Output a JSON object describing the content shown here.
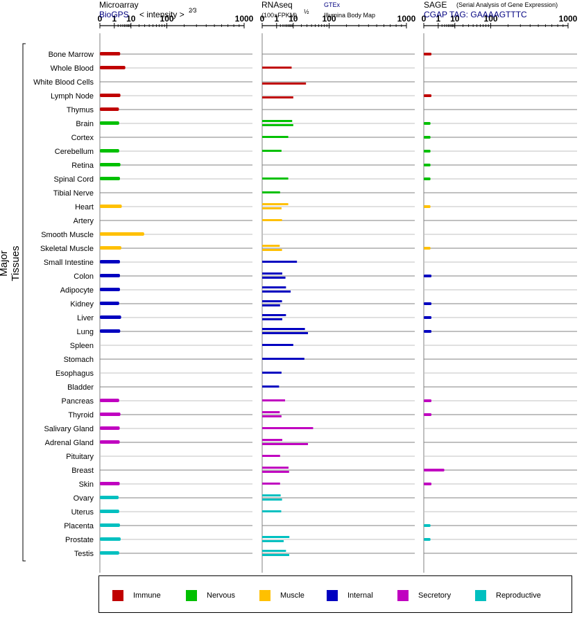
{
  "headers": {
    "microarray": {
      "title": "Microarray",
      "source": "BioGPS",
      "unit": "< intensity >",
      "exponent": "2⁄3"
    },
    "rnaseq": {
      "title": "RNAseq",
      "unit": "(100×FPKM)",
      "exponent": "½",
      "source1": "GTEx",
      "source2": "Illumina Body Map"
    },
    "sage": {
      "title": "SAGE",
      "subtitle": "(Serial Analysis of Gene Expression)",
      "tag": "CGAP TAG: GAAAAGTTTC"
    }
  },
  "chart_data": {
    "type": "bar",
    "ylabel": "Major Tissues",
    "x_ticks": [
      "0",
      "1",
      "10",
      "100",
      "1000"
    ],
    "x_tick_values": [
      0,
      1,
      10,
      100,
      1000
    ],
    "categories": [
      "Bone Marrow",
      "Whole Blood",
      "White Blood Cells",
      "Lymph Node",
      "Thymus",
      "Brain",
      "Cortex",
      "Cerebellum",
      "Retina",
      "Spinal Cord",
      "Tibial Nerve",
      "Heart",
      "Artery",
      "Smooth Muscle",
      "Skeletal Muscle",
      "Small Intestine",
      "Colon",
      "Adipocyte",
      "Kidney",
      "Liver",
      "Lung",
      "Spleen",
      "Stomach",
      "Esophagus",
      "Bladder",
      "Pancreas",
      "Thyroid",
      "Salivary Gland",
      "Adrenal Gland",
      "Pituitary",
      "Breast",
      "Skin",
      "Ovary",
      "Uterus",
      "Placenta",
      "Prostate",
      "Testis"
    ],
    "groups": [
      "Immune",
      "Immune",
      "Immune",
      "Immune",
      "Immune",
      "Nervous",
      "Nervous",
      "Nervous",
      "Nervous",
      "Nervous",
      "Nervous",
      "Muscle",
      "Muscle",
      "Muscle",
      "Muscle",
      "Internal",
      "Internal",
      "Internal",
      "Internal",
      "Internal",
      "Internal",
      "Internal",
      "Internal",
      "Internal",
      "Internal",
      "Secretory",
      "Secretory",
      "Secretory",
      "Secretory",
      "Secretory",
      "Secretory",
      "Secretory",
      "Reproductive",
      "Reproductive",
      "Reproductive",
      "Reproductive",
      "Reproductive"
    ],
    "group_colors": {
      "Immune": "#c00000",
      "Nervous": "#00c000",
      "Muscle": "#ffc000",
      "Internal": "#0000c0",
      "Secretory": "#c000c0",
      "Reproductive": "#00c0c0"
    },
    "legend": [
      "Immune",
      "Nervous",
      "Muscle",
      "Internal",
      "Secretory",
      "Reproductive"
    ],
    "microarray": [
      2.8,
      5.5,
      null,
      2.9,
      2.3,
      2.4,
      null,
      2.4,
      2.9,
      2.7,
      null,
      3.5,
      null,
      29,
      3.3,
      2.7,
      2.7,
      2.7,
      2.4,
      3.2,
      2.8,
      null,
      null,
      null,
      null,
      2.4,
      2.9,
      2.6,
      2.6,
      null,
      null,
      2.6,
      2.2,
      2.4,
      2.7,
      3.0,
      2.4
    ],
    "rnaseq_gtex": [
      null,
      8.5,
      null,
      null,
      null,
      9.0,
      5.9,
      2.4,
      null,
      5.9,
      1.9,
      5.9,
      2.6,
      null,
      1.8,
      14,
      2.7,
      4.5,
      2.6,
      4.5,
      26,
      10,
      25,
      2.4,
      1.6,
      4.0,
      1.8,
      44,
      2.7,
      1.9,
      6.1,
      1.9,
      2.1,
      2.3,
      null,
      6.7,
      4.5
    ],
    "rnaseq_ibm": [
      null,
      null,
      28,
      10,
      null,
      10,
      null,
      null,
      null,
      null,
      null,
      2.4,
      null,
      null,
      2.6,
      null,
      4.2,
      7.7,
      1.9,
      2.7,
      32,
      null,
      null,
      null,
      null,
      null,
      2.4,
      null,
      32,
      null,
      6.5,
      null,
      2.6,
      null,
      null,
      3.3,
      6.6
    ],
    "sage": [
      0.15,
      null,
      null,
      0.15,
      null,
      0.1,
      0.1,
      0.1,
      0.1,
      0.1,
      null,
      0.1,
      null,
      null,
      0.1,
      null,
      0.15,
      null,
      0.15,
      0.15,
      0.15,
      null,
      null,
      null,
      null,
      0.15,
      0.15,
      null,
      null,
      null,
      2.9,
      0.15,
      null,
      null,
      0.1,
      0.1,
      null
    ]
  }
}
